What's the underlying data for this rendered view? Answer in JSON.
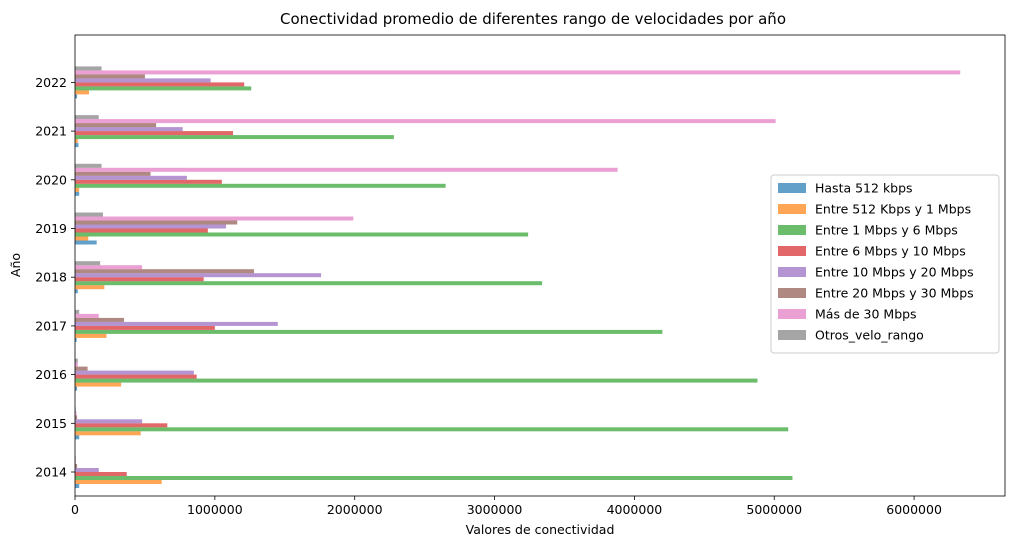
{
  "chart_data": {
    "type": "bar",
    "orientation": "horizontal",
    "title": "Conectividad promedio de diferentes rango de velocidades por año",
    "xlabel": "Valores de conectividad",
    "ylabel": "Año",
    "categories": [
      "2014",
      "2015",
      "2016",
      "2017",
      "2018",
      "2019",
      "2020",
      "2021",
      "2022"
    ],
    "xlim": [
      0,
      6650000
    ],
    "xticks": [
      0,
      1000000,
      2000000,
      3000000,
      4000000,
      5000000,
      6000000
    ],
    "xtick_labels": [
      "0",
      "1000000",
      "2000000",
      "3000000",
      "4000000",
      "5000000",
      "6000000"
    ],
    "grid": false,
    "legend_position": "center-right",
    "bar_alpha": 0.7,
    "series": [
      {
        "name": "Hasta 512 kbps",
        "color": "#1f77b4",
        "values": [
          30000,
          30000,
          15000,
          12000,
          20000,
          155000,
          30000,
          25000,
          15000
        ]
      },
      {
        "name": "Entre 512 Kbps y 1 Mbps",
        "color": "#ff7f0e",
        "values": [
          620000,
          470000,
          330000,
          225000,
          210000,
          95000,
          30000,
          20000,
          100000
        ]
      },
      {
        "name": "Entre 1 Mbps y 6 Mbps",
        "color": "#2ca02c",
        "values": [
          5130000,
          5100000,
          4880000,
          4200000,
          3340000,
          3240000,
          2650000,
          2280000,
          1260000
        ]
      },
      {
        "name": "Entre 6 Mbps y 10 Mbps",
        "color": "#d62728",
        "values": [
          370000,
          660000,
          870000,
          1000000,
          920000,
          950000,
          1050000,
          1130000,
          1210000
        ]
      },
      {
        "name": "Entre 10 Mbps y 20 Mbps",
        "color": "#9467bd",
        "values": [
          170000,
          480000,
          850000,
          1450000,
          1760000,
          1080000,
          800000,
          770000,
          970000
        ]
      },
      {
        "name": "Entre 20 Mbps y 30 Mbps",
        "color": "#8c564b",
        "values": [
          15000,
          15000,
          90000,
          350000,
          1280000,
          1160000,
          540000,
          580000,
          500000
        ]
      },
      {
        "name": "Más de 30 Mbps",
        "color": "#e377c2",
        "values": [
          5000,
          10000,
          20000,
          170000,
          480000,
          1990000,
          3880000,
          5010000,
          6330000
        ]
      },
      {
        "name": "Otros_velo_rango",
        "color": "#7f7f7f",
        "values": [
          5000,
          5000,
          20000,
          30000,
          180000,
          200000,
          190000,
          170000,
          190000
        ]
      }
    ]
  }
}
